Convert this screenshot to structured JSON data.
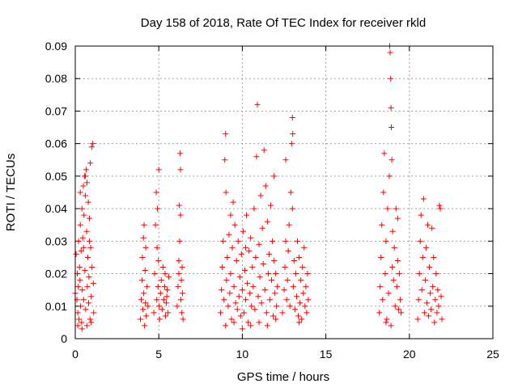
{
  "chart_data": {
    "type": "scatter",
    "title": "Day 158 of 2018, Rate Of TEC Index for receiver rkld",
    "xlabel": "GPS time / hours",
    "ylabel": "ROTI / TECUs",
    "xlim": [
      0,
      25
    ],
    "ylim": [
      0,
      0.09
    ],
    "x_ticks": [
      0,
      5,
      10,
      15,
      20,
      25
    ],
    "y_ticks": [
      0,
      0.01,
      0.02,
      0.03,
      0.04,
      0.05,
      0.06,
      0.07,
      0.08,
      0.09
    ],
    "x_tick_labels": [
      "0",
      "5",
      "10",
      "15",
      "20",
      "25"
    ],
    "y_tick_labels": [
      "0",
      "0.01",
      "0.02",
      "0.03",
      "0.04",
      "0.05",
      "0.06",
      "0.07",
      "0.08",
      "0.09"
    ],
    "grid": true,
    "marker": "+",
    "color": "#ff0000",
    "series": [
      {
        "name": "ROTI",
        "points": [
          [
            0.0,
            0.014
          ],
          [
            0.05,
            0.026
          ],
          [
            0.1,
            0.012
          ],
          [
            0.12,
            0.02
          ],
          [
            0.15,
            0.008
          ],
          [
            0.18,
            0.016
          ],
          [
            0.2,
            0.03
          ],
          [
            0.22,
            0.006
          ],
          [
            0.25,
            0.022
          ],
          [
            0.28,
            0.018
          ],
          [
            0.3,
            0.035
          ],
          [
            0.32,
            0.01
          ],
          [
            0.35,
            0.027
          ],
          [
            0.38,
            0.005
          ],
          [
            0.4,
            0.04
          ],
          [
            0.42,
            0.015
          ],
          [
            0.45,
            0.031
          ],
          [
            0.48,
            0.047
          ],
          [
            0.5,
            0.012
          ],
          [
            0.52,
            0.038
          ],
          [
            0.55,
            0.05
          ],
          [
            0.58,
            0.021
          ],
          [
            0.6,
            0.044
          ],
          [
            0.62,
            0.009
          ],
          [
            0.65,
            0.052
          ],
          [
            0.68,
            0.033
          ],
          [
            0.7,
            0.048
          ],
          [
            0.72,
            0.016
          ],
          [
            0.75,
            0.025
          ],
          [
            0.78,
            0.042
          ],
          [
            0.8,
            0.011
          ],
          [
            0.82,
            0.019
          ],
          [
            0.85,
            0.037
          ],
          [
            0.88,
            0.006
          ],
          [
            0.9,
            0.054
          ],
          [
            0.92,
            0.028
          ],
          [
            0.95,
            0.013
          ],
          [
            0.98,
            0.059
          ],
          [
            1.0,
            0.022
          ],
          [
            1.05,
            0.06
          ],
          [
            1.08,
            0.017
          ],
          [
            1.1,
            0.008
          ],
          [
            0.15,
            0.004
          ],
          [
            0.4,
            0.003
          ],
          [
            0.7,
            0.004
          ],
          [
            0.95,
            0.005
          ],
          [
            0.3,
            0.045
          ],
          [
            0.6,
            0.05
          ],
          [
            0.5,
            0.028
          ],
          [
            0.85,
            0.03
          ],
          [
            3.9,
            0.006
          ],
          [
            3.95,
            0.012
          ],
          [
            4.0,
            0.018
          ],
          [
            4.02,
            0.025
          ],
          [
            4.05,
            0.009
          ],
          [
            4.08,
            0.031
          ],
          [
            4.1,
            0.014
          ],
          [
            4.12,
            0.035
          ],
          [
            4.15,
            0.004
          ],
          [
            4.18,
            0.021
          ],
          [
            4.2,
            0.011
          ],
          [
            4.22,
            0.028
          ],
          [
            4.25,
            0.007
          ],
          [
            4.3,
            0.016
          ],
          [
            4.35,
            0.01
          ],
          [
            4.7,
            0.008
          ],
          [
            4.75,
            0.02
          ],
          [
            4.8,
            0.035
          ],
          [
            4.85,
            0.045
          ],
          [
            4.88,
            0.012
          ],
          [
            4.9,
            0.028
          ],
          [
            4.92,
            0.04
          ],
          [
            4.95,
            0.016
          ],
          [
            4.98,
            0.024
          ],
          [
            5.0,
            0.052
          ],
          [
            5.02,
            0.01
          ],
          [
            5.05,
            0.006
          ],
          [
            5.1,
            0.014
          ],
          [
            5.15,
            0.018
          ],
          [
            5.2,
            0.009
          ],
          [
            5.25,
            0.022
          ],
          [
            5.3,
            0.012
          ],
          [
            5.35,
            0.016
          ],
          [
            5.4,
            0.007
          ],
          [
            5.45,
            0.011
          ],
          [
            5.5,
            0.015
          ],
          [
            5.55,
            0.008
          ],
          [
            5.6,
            0.019
          ],
          [
            5.38,
            0.02
          ],
          [
            5.48,
            0.013
          ],
          [
            6.1,
            0.01
          ],
          [
            6.15,
            0.016
          ],
          [
            6.2,
            0.024
          ],
          [
            6.22,
            0.041
          ],
          [
            6.25,
            0.03
          ],
          [
            6.28,
            0.057
          ],
          [
            6.3,
            0.052
          ],
          [
            6.32,
            0.012
          ],
          [
            6.35,
            0.018
          ],
          [
            6.38,
            0.008
          ],
          [
            6.4,
            0.022
          ],
          [
            6.42,
            0.014
          ],
          [
            6.45,
            0.006
          ],
          [
            6.3,
            0.038
          ],
          [
            6.2,
            0.02
          ],
          [
            8.7,
            0.008
          ],
          [
            8.75,
            0.015
          ],
          [
            8.8,
            0.022
          ],
          [
            8.85,
            0.03
          ],
          [
            8.9,
            0.012
          ],
          [
            8.95,
            0.055
          ],
          [
            9.0,
            0.063
          ],
          [
            9.02,
            0.045
          ],
          [
            9.05,
            0.018
          ],
          [
            9.1,
            0.025
          ],
          [
            9.15,
            0.01
          ],
          [
            9.2,
            0.032
          ],
          [
            9.25,
            0.014
          ],
          [
            9.3,
            0.02
          ],
          [
            9.35,
            0.006
          ],
          [
            9.4,
            0.028
          ],
          [
            9.45,
            0.042
          ],
          [
            9.5,
            0.016
          ],
          [
            9.55,
            0.035
          ],
          [
            9.6,
            0.011
          ],
          [
            9.65,
            0.024
          ],
          [
            9.7,
            0.009
          ],
          [
            9.75,
            0.03
          ],
          [
            9.8,
            0.013
          ],
          [
            9.85,
            0.019
          ],
          [
            9.9,
            0.007
          ],
          [
            9.95,
            0.026
          ],
          [
            10.0,
            0.015
          ],
          [
            10.05,
            0.033
          ],
          [
            10.1,
            0.008
          ],
          [
            10.15,
            0.021
          ],
          [
            10.2,
            0.012
          ],
          [
            10.25,
            0.038
          ],
          [
            10.3,
            0.017
          ],
          [
            10.35,
            0.005
          ],
          [
            10.4,
            0.027
          ],
          [
            10.45,
            0.014
          ],
          [
            10.5,
            0.031
          ],
          [
            10.55,
            0.01
          ],
          [
            10.6,
            0.022
          ],
          [
            10.65,
            0.016
          ],
          [
            10.7,
            0.04
          ],
          [
            10.75,
            0.009
          ],
          [
            10.8,
            0.025
          ],
          [
            10.85,
            0.056
          ],
          [
            10.9,
            0.072
          ],
          [
            10.95,
            0.013
          ],
          [
            11.0,
            0.029
          ],
          [
            11.05,
            0.019
          ],
          [
            11.1,
            0.044
          ],
          [
            11.15,
            0.011
          ],
          [
            11.2,
            0.034
          ],
          [
            11.25,
            0.023
          ],
          [
            11.3,
            0.058
          ],
          [
            11.35,
            0.015
          ],
          [
            11.4,
            0.047
          ],
          [
            11.45,
            0.008
          ],
          [
            11.5,
            0.036
          ],
          [
            11.55,
            0.02
          ],
          [
            11.6,
            0.026
          ],
          [
            11.65,
            0.012
          ],
          [
            11.7,
            0.041
          ],
          [
            11.75,
            0.018
          ],
          [
            11.8,
            0.03
          ],
          [
            11.85,
            0.007
          ],
          [
            11.9,
            0.024
          ],
          [
            11.95,
            0.014
          ],
          [
            12.0,
            0.02
          ],
          [
            12.05,
            0.01
          ],
          [
            12.1,
            0.016
          ],
          [
            9.0,
            0.004
          ],
          [
            9.5,
            0.005
          ],
          [
            10.0,
            0.003
          ],
          [
            10.5,
            0.004
          ],
          [
            11.0,
            0.005
          ],
          [
            11.5,
            0.004
          ],
          [
            12.0,
            0.006
          ],
          [
            9.3,
            0.038
          ],
          [
            10.2,
            0.028
          ],
          [
            11.9,
            0.05
          ],
          [
            12.4,
            0.008
          ],
          [
            12.5,
            0.015
          ],
          [
            12.55,
            0.022
          ],
          [
            12.6,
            0.03
          ],
          [
            12.65,
            0.012
          ],
          [
            12.7,
            0.018
          ],
          [
            12.75,
            0.027
          ],
          [
            12.8,
            0.035
          ],
          [
            12.85,
            0.01
          ],
          [
            12.9,
            0.045
          ],
          [
            12.95,
            0.06
          ],
          [
            13.0,
            0.068
          ],
          [
            13.02,
            0.063
          ],
          [
            13.05,
            0.016
          ],
          [
            13.1,
            0.024
          ],
          [
            13.15,
            0.009
          ],
          [
            13.2,
            0.02
          ],
          [
            13.25,
            0.013
          ],
          [
            13.3,
            0.03
          ],
          [
            13.35,
            0.007
          ],
          [
            13.4,
            0.025
          ],
          [
            13.45,
            0.011
          ],
          [
            13.5,
            0.018
          ],
          [
            13.55,
            0.006
          ],
          [
            13.6,
            0.022
          ],
          [
            13.65,
            0.014
          ],
          [
            13.7,
            0.028
          ],
          [
            13.75,
            0.01
          ],
          [
            13.8,
            0.016
          ],
          [
            13.85,
            0.008
          ],
          [
            13.9,
            0.02
          ],
          [
            13.95,
            0.012
          ],
          [
            12.6,
            0.055
          ],
          [
            13.0,
            0.04
          ],
          [
            13.4,
            0.005
          ],
          [
            18.2,
            0.008
          ],
          [
            18.25,
            0.016
          ],
          [
            18.3,
            0.025
          ],
          [
            18.35,
            0.035
          ],
          [
            18.4,
            0.012
          ],
          [
            18.45,
            0.045
          ],
          [
            18.5,
            0.057
          ],
          [
            18.55,
            0.02
          ],
          [
            18.6,
            0.03
          ],
          [
            18.65,
            0.006
          ],
          [
            18.7,
            0.04
          ],
          [
            18.75,
            0.014
          ],
          [
            18.8,
            0.05
          ],
          [
            18.82,
            0.09
          ],
          [
            18.85,
            0.088
          ],
          [
            18.88,
            0.08
          ],
          [
            18.9,
            0.071
          ],
          [
            18.92,
            0.065
          ],
          [
            18.95,
            0.055
          ],
          [
            18.98,
            0.022
          ],
          [
            19.0,
            0.033
          ],
          [
            19.05,
            0.018
          ],
          [
            19.1,
            0.028
          ],
          [
            19.15,
            0.01
          ],
          [
            19.2,
            0.04
          ],
          [
            19.25,
            0.016
          ],
          [
            19.3,
            0.024
          ],
          [
            19.35,
            0.009
          ],
          [
            19.4,
            0.02
          ],
          [
            19.45,
            0.012
          ],
          [
            19.5,
            0.008
          ],
          [
            18.6,
            0.005
          ],
          [
            18.9,
            0.004
          ],
          [
            19.3,
            0.037
          ],
          [
            20.5,
            0.006
          ],
          [
            20.55,
            0.012
          ],
          [
            20.6,
            0.02
          ],
          [
            20.65,
            0.03
          ],
          [
            20.7,
            0.038
          ],
          [
            20.75,
            0.015
          ],
          [
            20.8,
            0.025
          ],
          [
            20.85,
            0.043
          ],
          [
            20.9,
            0.008
          ],
          [
            20.95,
            0.018
          ],
          [
            21.0,
            0.028
          ],
          [
            21.05,
            0.011
          ],
          [
            21.1,
            0.035
          ],
          [
            21.15,
            0.007
          ],
          [
            21.2,
            0.022
          ],
          [
            21.25,
            0.014
          ],
          [
            21.3,
            0.009
          ],
          [
            21.35,
            0.034
          ],
          [
            21.4,
            0.016
          ],
          [
            21.45,
            0.025
          ],
          [
            21.5,
            0.005
          ],
          [
            21.55,
            0.012
          ],
          [
            21.6,
            0.02
          ],
          [
            21.65,
            0.008
          ],
          [
            21.7,
            0.015
          ],
          [
            21.75,
            0.01
          ],
          [
            21.8,
            0.041
          ],
          [
            21.85,
            0.04
          ],
          [
            21.9,
            0.013
          ],
          [
            21.95,
            0.006
          ]
        ]
      }
    ]
  }
}
